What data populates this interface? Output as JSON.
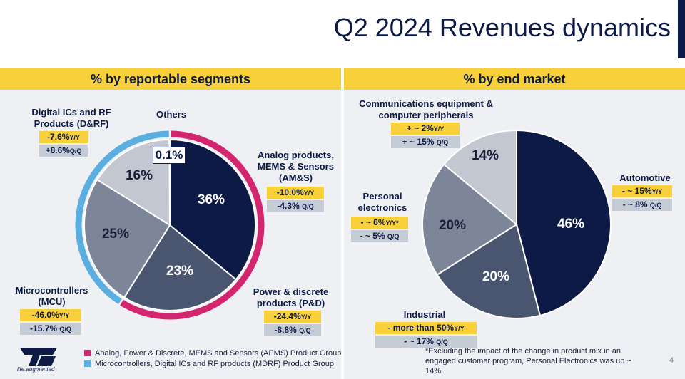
{
  "title": "Q2 2024 Revenues dynamics",
  "page_number": "4",
  "colors": {
    "navy": "#0c1a45",
    "slate": "#4a5570",
    "steel": "#7d8599",
    "light": "#c3c7d1",
    "pink": "#d4266f",
    "blue": "#5aaee0",
    "yellow": "#f7d03a"
  },
  "left_panel": {
    "header": "% by reportable segments",
    "segments": {
      "amps": {
        "name_line1": "Analog products,",
        "name_line2": "MEMS & Sensors",
        "name_line3": "(AM&S)",
        "yy": "-10.0%",
        "yy_unit": "Y/Y",
        "qq": "-4.3%",
        "qq_unit": "Q/Q"
      },
      "pd": {
        "name_line1": "Power & discrete",
        "name_line2": "products (P&D)",
        "yy": "-24.4%",
        "yy_unit": "Y/Y",
        "qq": "-8.8%",
        "qq_unit": "Q/Q"
      },
      "mcu": {
        "name_line1": "Microcontrollers",
        "name_line2": "(MCU)",
        "yy": "-46.0%",
        "yy_unit": "Y/Y",
        "qq": "-15.7%",
        "qq_unit": "Q/Q"
      },
      "drf": {
        "name_line1": "Digital ICs and RF",
        "name_line2": "Products (D&RF)",
        "yy": "-7.6%",
        "yy_unit": "Y/Y",
        "qq": "+8.6%",
        "qq_unit": "Q/Q"
      },
      "others": {
        "name": "Others",
        "value": "0.1%"
      }
    },
    "legend": {
      "apms": "Analog, Power & Discrete, MEMS and Sensors (APMS) Product Group",
      "mdrf": "Microcontrollers, Digital ICs and RF products (MDRF) Product Group"
    }
  },
  "right_panel": {
    "header": "% by end market",
    "markets": {
      "comm": {
        "name_line1": "Communications equipment &",
        "name_line2": "computer peripherals",
        "yy": "+ ~ 2%",
        "yy_unit": "Y/Y",
        "qq": "+ ~ 15%",
        "qq_unit": "Q/Q"
      },
      "auto": {
        "name": "Automotive",
        "yy": "- ~ 15%",
        "yy_unit": "Y/Y",
        "qq": "- ~ 8%",
        "qq_unit": "Q/Q"
      },
      "personal": {
        "name_line1": "Personal",
        "name_line2": "electronics",
        "yy": "- ~ 6%",
        "yy_unit": "Y/Y*",
        "qq": "- ~ 5%",
        "qq_unit": "Q/Q"
      },
      "industrial": {
        "name": "Industrial",
        "yy": "- more than 50%",
        "yy_unit": "Y/Y",
        "qq": "- ~ 17%",
        "qq_unit": "Q/Q"
      }
    },
    "footnote": "*Excluding the impact of the change in product mix in an engaged customer program, Personal Electronics was up ~ 14%."
  },
  "logo_tagline": "life.augmented",
  "chart_data": [
    {
      "type": "pie",
      "title": "% by reportable segments",
      "categories": [
        "AM&S",
        "P&D",
        "MCU",
        "D&RF",
        "Others"
      ],
      "values": [
        36,
        23,
        25,
        16,
        0.1
      ],
      "labels": [
        "36%",
        "23%",
        "25%",
        "16%",
        "0.1%"
      ],
      "slice_colors": [
        "#0c1a45",
        "#4a5570",
        "#7d8599",
        "#c3c7d1",
        "#ffffff"
      ],
      "outer_ring": [
        {
          "name": "APMS",
          "value": 59,
          "color": "#d4266f"
        },
        {
          "name": "MDRF",
          "value": 41,
          "color": "#5aaee0"
        }
      ]
    },
    {
      "type": "pie",
      "title": "% by end market",
      "categories": [
        "Automotive",
        "Industrial",
        "Personal electronics",
        "Communications equipment & computer peripherals"
      ],
      "values": [
        46,
        20,
        20,
        14
      ],
      "labels": [
        "46%",
        "20%",
        "20%",
        "14%"
      ],
      "slice_colors": [
        "#0c1a45",
        "#4a5570",
        "#7d8599",
        "#c3c7d1"
      ]
    }
  ]
}
